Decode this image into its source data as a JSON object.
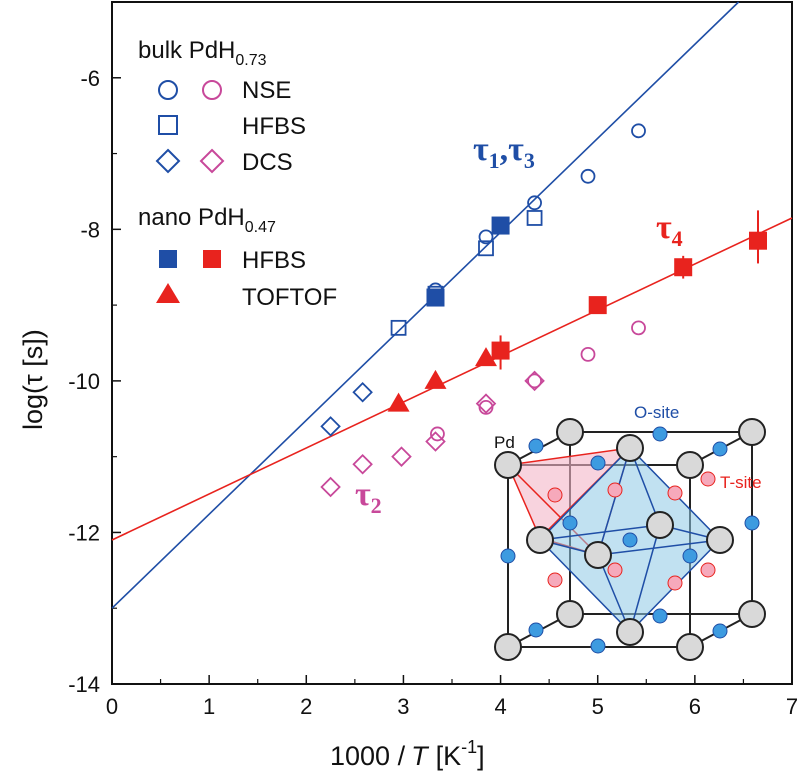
{
  "chart_data": {
    "type": "scatter",
    "xlabel": "1000 /T [K⁻¹]",
    "xlabel_main": "1000 /",
    "xlabel_T": "T",
    "xlabel_unit": "[K",
    "xlabel_exp": "-1",
    "xlabel_close": "]",
    "ylabel": "log(τ [s])",
    "xlim": [
      0,
      7
    ],
    "ylim": [
      -14,
      -5
    ],
    "xticks": [
      "0",
      "1",
      "2",
      "3",
      "4",
      "5",
      "6",
      "7"
    ],
    "yticks": [
      "-14",
      "-12",
      "-10",
      "-8",
      "-6"
    ],
    "colors": {
      "blue": "#1f4ea6",
      "red": "#e8231e",
      "magenta": "#c8489a",
      "black": "#111111"
    },
    "legend": {
      "group1": "bulk PdH",
      "group1_sub": "0.73",
      "group2": "nano PdH",
      "group2_sub": "0.47",
      "entries": [
        "NSE",
        "HFBS",
        "DCS",
        "HFBS",
        "TOFTOF"
      ]
    },
    "annotations": {
      "tau13": "τ",
      "tau13_sub1": "1",
      "tau13_sep": ",τ",
      "tau13_sub2": "3",
      "tau4": "τ",
      "tau4_sub": "4",
      "tau2": "τ",
      "tau2_sub": "2"
    },
    "fits": [
      {
        "name": "τ1,τ3",
        "color": "blue",
        "x": [
          0,
          6.45
        ],
        "y": [
          -13.0,
          -5.0
        ]
      },
      {
        "name": "τ4",
        "color": "red",
        "x": [
          0,
          7
        ],
        "y": [
          -12.1,
          -7.85
        ]
      }
    ],
    "series": [
      {
        "name": "NSE",
        "group": "bulk",
        "marker": "circle-open",
        "color": "blue",
        "x": [
          3.33,
          3.85,
          4.35,
          4.9,
          5.42
        ],
        "y": [
          -8.8,
          -8.1,
          -7.65,
          -7.3,
          -6.7
        ]
      },
      {
        "name": "NSE",
        "group": "bulk",
        "marker": "circle-open",
        "color": "magenta",
        "x": [
          3.35,
          3.85,
          4.35,
          4.9,
          5.42
        ],
        "y": [
          -10.7,
          -10.35,
          -10.0,
          -9.65,
          -9.3
        ]
      },
      {
        "name": "HFBS",
        "group": "bulk",
        "marker": "square-open",
        "color": "blue",
        "x": [
          2.95,
          3.33,
          3.85,
          4.35
        ],
        "y": [
          -9.3,
          -8.85,
          -8.25,
          -7.85
        ]
      },
      {
        "name": "DCS",
        "group": "bulk",
        "marker": "diamond-open",
        "color": "blue",
        "x": [
          2.25,
          2.58
        ],
        "y": [
          -10.6,
          -10.15
        ]
      },
      {
        "name": "DCS",
        "group": "bulk",
        "marker": "diamond-open",
        "color": "magenta",
        "x": [
          2.25,
          2.58,
          2.98,
          3.33,
          3.85,
          4.35
        ],
        "y": [
          -11.4,
          -11.1,
          -11.0,
          -10.8,
          -10.3,
          -10.0
        ]
      },
      {
        "name": "HFBS",
        "group": "nano",
        "marker": "square-filled",
        "color": "blue",
        "x": [
          3.33,
          4.0
        ],
        "y": [
          -8.9,
          -7.95
        ]
      },
      {
        "name": "HFBS",
        "group": "nano",
        "marker": "square-filled",
        "color": "red",
        "x": [
          4.0,
          5.0,
          5.88,
          6.65
        ],
        "y": [
          -9.6,
          -9.0,
          -8.5,
          -8.15
        ]
      },
      {
        "name": "TOFTOF",
        "group": "nano",
        "marker": "triangle-filled",
        "color": "red",
        "x": [
          2.95,
          3.33,
          3.85
        ],
        "y": [
          -10.3,
          -10.0,
          -9.7
        ]
      }
    ],
    "error_bars": [
      {
        "x": 4.0,
        "y_low": -9.85,
        "y_high": -9.4
      },
      {
        "x": 5.88,
        "y_low": -8.65,
        "y_high": -8.35
      },
      {
        "x": 6.65,
        "y_low": -8.45,
        "y_high": -7.75
      }
    ],
    "inset": {
      "labels": {
        "pd": "Pd",
        "o_site": "O-site",
        "t_site": "T-site"
      }
    }
  }
}
